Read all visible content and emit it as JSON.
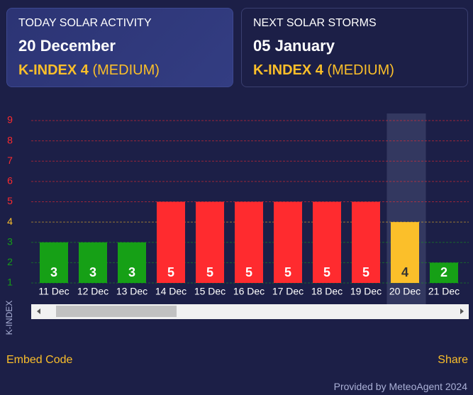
{
  "cards": [
    {
      "label": "TODAY SOLAR ACTIVITY",
      "date": "20 December",
      "kindex": "K-INDEX 4",
      "level": "(MEDIUM)"
    },
    {
      "label": "NEXT SOLAR STORMS",
      "date": "05 January",
      "kindex": "K-INDEX 4",
      "level": "(MEDIUM)"
    }
  ],
  "chart_data": {
    "type": "bar",
    "ylabel": "K-INDEX",
    "categories": [
      "11 Dec",
      "12 Dec",
      "13 Dec",
      "14 Dec",
      "15 Dec",
      "16 Dec",
      "17 Dec",
      "18 Dec",
      "19 Dec",
      "20 Dec",
      "21 Dec"
    ],
    "values": [
      3,
      3,
      3,
      5,
      5,
      5,
      5,
      5,
      5,
      4,
      2
    ],
    "colors": [
      "#16a016",
      "#16a016",
      "#16a016",
      "#ff2b2f",
      "#ff2b2f",
      "#ff2b2f",
      "#ff2b2f",
      "#ff2b2f",
      "#ff2b2f",
      "#fbbf2a",
      "#16a016"
    ],
    "highlight_index": 9,
    "ylim": [
      1,
      9
    ],
    "yticks": [
      1,
      2,
      3,
      4,
      5,
      6,
      7,
      8,
      9
    ],
    "ytick_colors": [
      "#16a016",
      "#16a016",
      "#16a016",
      "#fbbf2a",
      "#ff2b2f",
      "#ff2b2f",
      "#ff2b2f",
      "#ff2b2f",
      "#ff2b2f"
    ],
    "grid": true
  },
  "footer": {
    "embed": "Embed Code",
    "share": "Share",
    "provided": "Provided by MeteoAgent 2024"
  }
}
